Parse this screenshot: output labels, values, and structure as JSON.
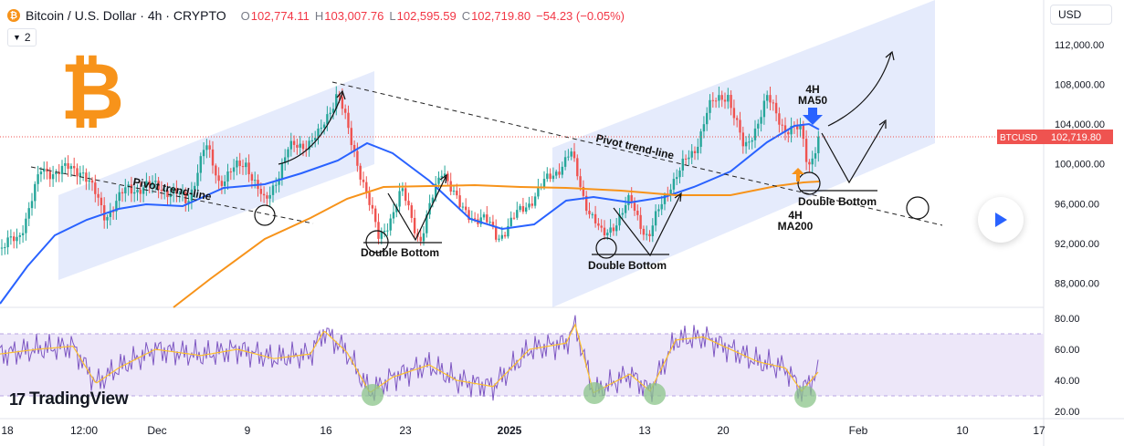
{
  "header": {
    "coin_symbol": "₿",
    "title": "Bitcoin / U.S. Dollar · 4h · CRYPTO",
    "o_label": "O",
    "o_value": "102,774.11",
    "h_label": "H",
    "h_value": "103,007.76",
    "l_label": "L",
    "l_value": "102,595.59",
    "c_label": "C",
    "c_value": "102,719.80",
    "change": "−54.23 (−0.05%)",
    "collapse_count": "2"
  },
  "currency_label": "USD",
  "price_tag": {
    "symbol": "BTCUSD",
    "value": "102,719.80"
  },
  "brand": {
    "name": "TradingView"
  },
  "big_logo_glyph": "₿",
  "colors": {
    "up": "#26a69a",
    "down": "#ef5350",
    "ma50": "#2962ff",
    "ma200": "#f7931a",
    "rsi": "#7e57c2",
    "rsi_ma": "#fbc02d",
    "channel": "#dfe6fb",
    "bitcoin": "#f7931a"
  },
  "chart_data": [
    {
      "type": "candlestick",
      "series": [
        {
          "name": "4H MA50"
        },
        {
          "name": "4H MA200"
        }
      ],
      "x_ticks": [
        "18",
        "12:00",
        "Dec",
        "9",
        "16",
        "23",
        "2025",
        "13",
        "20",
        "Feb",
        "10",
        "17"
      ],
      "y_ticks": [
        "88,000.00",
        "92,000.00",
        "96,000.00",
        "100,000.00",
        "104,000.00",
        "108,000.00",
        "112,000.00"
      ],
      "ylim": [
        85000,
        116000
      ],
      "last_price": 102719.8,
      "annotations": [
        "Pivot trend-line",
        "Pivot trend-line",
        "Double Bottom",
        "Double Bottom",
        "Double Bottom",
        "4H\nMA50",
        "4H\nMA200"
      ]
    },
    {
      "type": "line",
      "y_ticks": [
        "20.00",
        "40.00",
        "60.00",
        "80.00"
      ],
      "ylim": [
        15,
        85
      ],
      "band": [
        30,
        70
      ]
    }
  ],
  "annotations": {
    "pivot1": "Pivot trend-line",
    "pivot2": "Pivot trend-line",
    "db1": "Double Bottom",
    "db2": "Double Bottom",
    "db3": "Double Bottom",
    "ma50_line1": "4H",
    "ma50_line2": "MA50",
    "ma200_line1": "4H",
    "ma200_line2": "MA200"
  }
}
